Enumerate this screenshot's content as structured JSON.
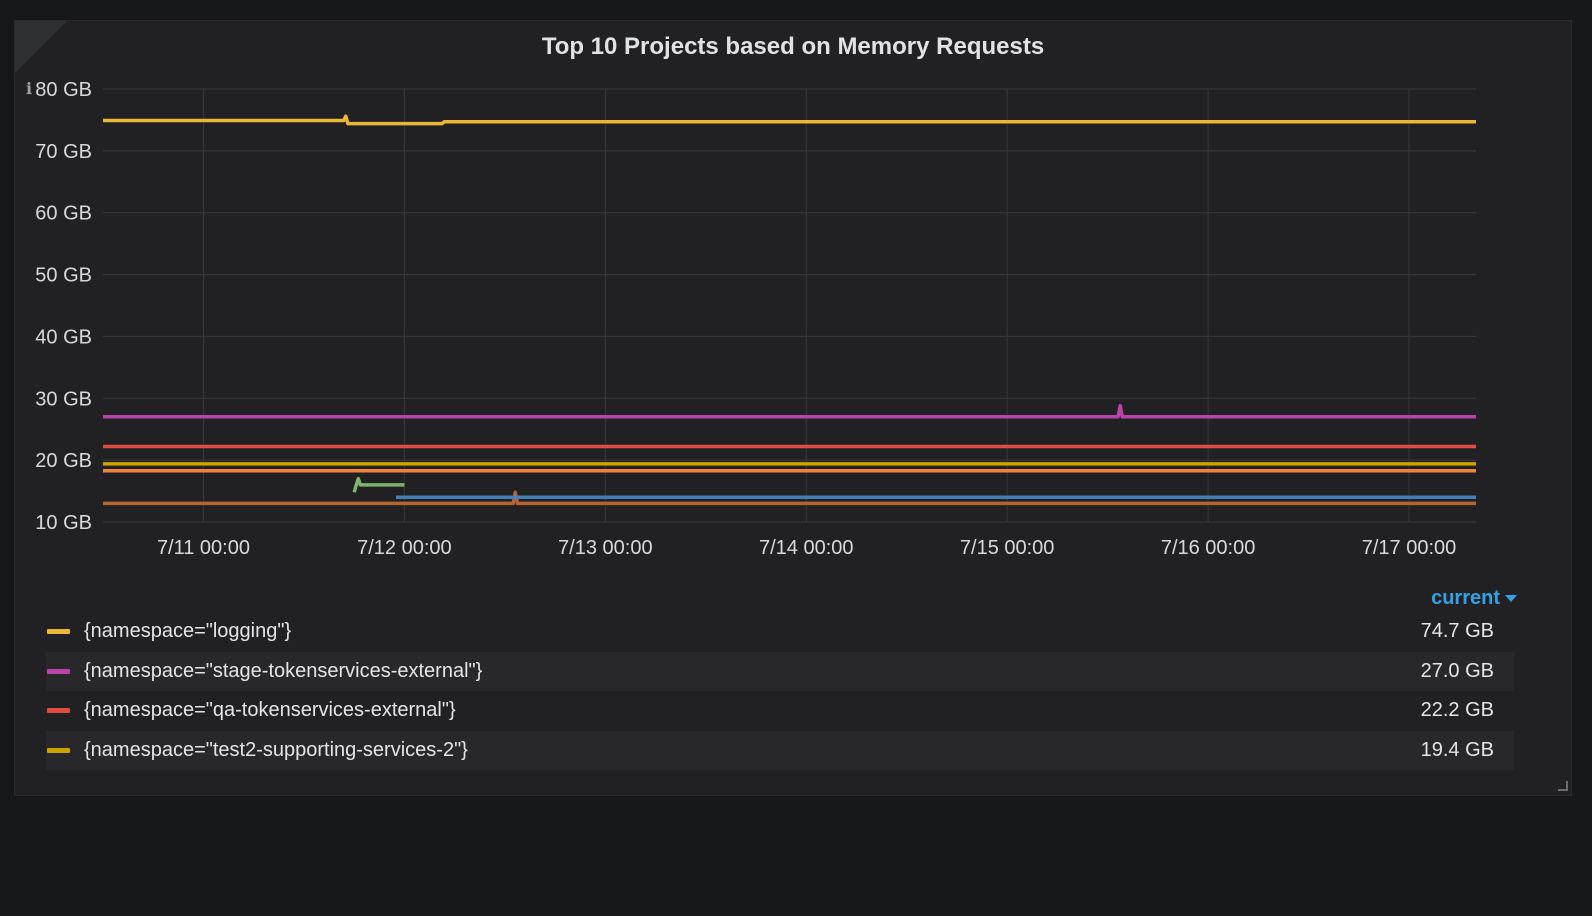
{
  "panel": {
    "title": "Top 10 Projects based on Memory Requests",
    "info_icon": "info-icon",
    "info_glyph": "i"
  },
  "legend": {
    "sort_label": "current",
    "sort_icon": "caret-down-icon",
    "items": [
      {
        "label": "{namespace=\"logging\"}",
        "value": "74.7 GB",
        "color": "#eab839"
      },
      {
        "label": "{namespace=\"stage-tokenservices-external\"}",
        "value": "27.0 GB",
        "color": "#ba43a9"
      },
      {
        "label": "{namespace=\"qa-tokenservices-external\"}",
        "value": "22.2 GB",
        "color": "#e24d42"
      },
      {
        "label": "{namespace=\"test2-supporting-services-2\"}",
        "value": "19.4 GB",
        "color": "#cca300"
      }
    ]
  },
  "chart_data": {
    "type": "line",
    "title": "Top 10 Projects based on Memory Requests",
    "xlabel": "",
    "ylabel": "",
    "x_range": [
      "7/10 12:00",
      "7/17 08:00"
    ],
    "x_ticks": [
      "7/11 00:00",
      "7/12 00:00",
      "7/13 00:00",
      "7/14 00:00",
      "7/15 00:00",
      "7/16 00:00",
      "7/17 00:00"
    ],
    "y_ticks": [
      "10 GB",
      "20 GB",
      "30 GB",
      "40 GB",
      "50 GB",
      "60 GB",
      "70 GB",
      "80 GB"
    ],
    "ylim": [
      10,
      80
    ],
    "grid": true,
    "legend_position": "bottom",
    "series": [
      {
        "name": "{namespace=\"logging\"}",
        "color": "#eab839",
        "points": [
          [
            "7/10 12:00",
            74.9
          ],
          [
            "7/11 16:45",
            74.9
          ],
          [
            "7/11 17:00",
            75.6
          ],
          [
            "7/11 17:15",
            74.4
          ],
          [
            "7/12 04:30",
            74.4
          ],
          [
            "7/12 04:45",
            74.7
          ],
          [
            "7/17 08:00",
            74.7
          ]
        ]
      },
      {
        "name": "{namespace=\"stage-tokenservices-external\"}",
        "color": "#ba43a9",
        "points": [
          [
            "7/10 12:00",
            27.0
          ],
          [
            "7/15 13:15",
            27.0
          ],
          [
            "7/15 13:30",
            28.8
          ],
          [
            "7/15 13:45",
            27.0
          ],
          [
            "7/17 08:00",
            27.0
          ]
        ]
      },
      {
        "name": "{namespace=\"qa-tokenservices-external\"}",
        "color": "#e24d42",
        "points": [
          [
            "7/10 12:00",
            22.2
          ],
          [
            "7/17 08:00",
            22.2
          ]
        ]
      },
      {
        "name": "{namespace=\"test2-supporting-services-2\"}",
        "color": "#cca300",
        "points": [
          [
            "7/10 12:00",
            19.4
          ],
          [
            "7/17 08:00",
            19.4
          ]
        ]
      },
      {
        "color": "#ef843c",
        "points": [
          [
            "7/10 12:00",
            18.3
          ],
          [
            "7/17 08:00",
            18.3
          ]
        ]
      },
      {
        "color": "#7eb26d",
        "points": [
          [
            "7/11 18:00",
            14.8
          ],
          [
            "7/11 18:15",
            16.0
          ],
          [
            "7/11 18:30",
            17.0
          ],
          [
            "7/11 18:45",
            16.0
          ],
          [
            "7/12 00:00",
            16.0
          ]
        ]
      },
      {
        "color": "#447ebc",
        "points": [
          [
            "7/11 23:00",
            14.0
          ],
          [
            "7/17 08:00",
            14.0
          ]
        ]
      },
      {
        "color": "#b7652f",
        "points": [
          [
            "7/10 12:00",
            13.0
          ],
          [
            "7/12 13:00",
            13.0
          ],
          [
            "7/12 13:15",
            14.8
          ],
          [
            "7/12 13:30",
            13.0
          ],
          [
            "7/17 08:00",
            13.0
          ]
        ]
      }
    ]
  }
}
